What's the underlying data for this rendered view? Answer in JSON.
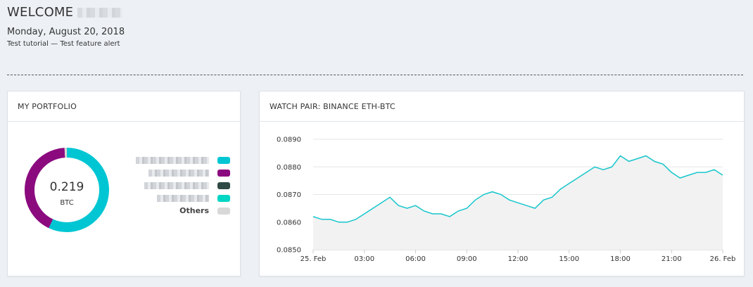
{
  "header": {
    "welcome": "WELCOME",
    "date": "Monday, August 20, 2018",
    "subtitle": "Test tutorial — Test feature alert"
  },
  "portfolio": {
    "title": "MY PORTFOLIO",
    "total_value": "0.219",
    "unit": "BTC",
    "segments": [
      {
        "color": "#00c6d3",
        "fraction": 0.57
      },
      {
        "color": "#8b0b7f",
        "fraction": 0.42
      },
      {
        "color": "#2f4a45",
        "fraction": 0.0
      },
      {
        "color": "#00d6c4",
        "fraction": 0.0
      },
      {
        "color": "#d8d8d8",
        "fraction": 0.01
      }
    ],
    "legend": [
      {
        "label": "",
        "color": "#00c6d3"
      },
      {
        "label": "",
        "color": "#8b0b7f"
      },
      {
        "label": "",
        "color": "#2f4a45"
      },
      {
        "label": "",
        "color": "#00d6c4"
      },
      {
        "label": "Others",
        "color": "#d8d8d8"
      }
    ]
  },
  "watch": {
    "title": "WATCH PAIR: BINANCE ETH-BTC"
  },
  "chart_data": {
    "type": "area",
    "ylim": [
      0.085,
      0.089
    ],
    "yticks": [
      "0.0890",
      "0.0880",
      "0.0870",
      "0.0860",
      "0.0850"
    ],
    "ytick_values": [
      0.089,
      0.088,
      0.087,
      0.086,
      0.085
    ],
    "xticks": [
      "25. Feb",
      "03:00",
      "06:00",
      "09:00",
      "12:00",
      "15:00",
      "18:00",
      "21:00",
      "26. Feb"
    ],
    "xlim_hours": [
      0,
      24
    ],
    "line_color": "#17c6cc",
    "fill_color": "#f2f2f2",
    "x_hours": [
      0,
      0.5,
      1,
      1.5,
      2,
      2.5,
      3,
      3.5,
      4,
      4.5,
      5,
      5.5,
      6,
      6.5,
      7,
      7.5,
      8,
      8.5,
      9,
      9.5,
      10,
      10.5,
      11,
      11.5,
      12,
      12.5,
      13,
      13.5,
      14,
      14.5,
      15,
      15.5,
      16,
      16.5,
      17,
      17.5,
      18,
      18.5,
      19,
      19.5,
      20,
      20.5,
      21,
      21.5,
      22,
      22.5,
      23,
      23.5,
      24
    ],
    "values": [
      0.0862,
      0.0861,
      0.0861,
      0.086,
      0.086,
      0.0861,
      0.0863,
      0.0865,
      0.0867,
      0.0869,
      0.0866,
      0.0865,
      0.0866,
      0.0864,
      0.0863,
      0.0863,
      0.0862,
      0.0864,
      0.0865,
      0.0868,
      0.087,
      0.0871,
      0.087,
      0.0868,
      0.0867,
      0.0866,
      0.0865,
      0.0868,
      0.0869,
      0.0872,
      0.0874,
      0.0876,
      0.0878,
      0.088,
      0.0879,
      0.088,
      0.0884,
      0.0882,
      0.0883,
      0.0884,
      0.0882,
      0.0881,
      0.0878,
      0.0876,
      0.0877,
      0.0878,
      0.0878,
      0.0879,
      0.0877
    ]
  }
}
